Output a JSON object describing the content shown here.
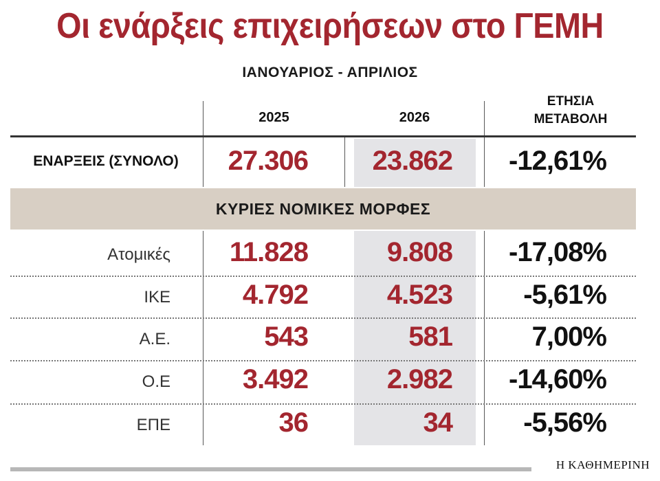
{
  "title": "Οι ενάρξεις επιχειρήσεων στο ΓΕΜΗ",
  "subtitle": "ΙΑΝΟΥΑΡΙΟΣ - ΑΠΡΙΛΙΟΣ",
  "columns": {
    "year1": "2025",
    "year2": "2026",
    "change_line1": "ΕΤΗΣΙΑ",
    "change_line2": "ΜΕΤΑΒΟΛΗ"
  },
  "total": {
    "label": "ΕΝΑΡΞΕΙΣ (ΣΥΝΟΛΟ)",
    "v2025": "27.306",
    "v2026": "23.862",
    "change": "-12,61%"
  },
  "section_header": "ΚΥΡΙΕΣ ΝΟΜΙΚΕΣ ΜΟΡΦΕΣ",
  "rows": [
    {
      "label": "Ατομικές",
      "v2025": "11.828",
      "v2026": "9.808",
      "change": "-17,08%"
    },
    {
      "label": "ΙΚΕ",
      "v2025": "4.792",
      "v2026": "4.523",
      "change": "-5,61%"
    },
    {
      "label": "Α.Ε.",
      "v2025": "543",
      "v2026": "581",
      "change": "7,00%"
    },
    {
      "label": "Ο.Ε",
      "v2025": "3.492",
      "v2026": "2.982",
      "change": "-14,60%"
    },
    {
      "label": "ΕΠΕ",
      "v2025": "36",
      "v2026": "34",
      "change": "-5,56%"
    }
  ],
  "source": "Η ΚΑΘΗΜΕΡΙΝΗ",
  "colors": {
    "accent": "#a3262f",
    "band": "#d8cfc4",
    "highlight_column": "#e4e4e7"
  },
  "chart_data": {
    "type": "table",
    "title": "Οι ενάρξεις επιχειρήσεων στο ΓΕΜΗ",
    "subtitle": "ΙΑΝΟΥΑΡΙΟΣ - ΑΠΡΙΛΙΟΣ",
    "columns": [
      "",
      "2025",
      "2026",
      "ΕΤΗΣΙΑ ΜΕΤΑΒΟΛΗ"
    ],
    "rows": [
      [
        "ΕΝΑΡΞΕΙΣ (ΣΥΝΟΛΟ)",
        27306,
        23862,
        -12.61
      ],
      [
        "Ατομικές",
        11828,
        9808,
        -17.08
      ],
      [
        "ΙΚΕ",
        4792,
        4523,
        -5.61
      ],
      [
        "Α.Ε.",
        543,
        581,
        7.0
      ],
      [
        "Ο.Ε",
        3492,
        2982,
        -14.6
      ],
      [
        "ΕΠΕ",
        36,
        34,
        -5.56
      ]
    ],
    "section_header": "ΚΥΡΙΕΣ ΝΟΜΙΚΕΣ ΜΟΡΦΕΣ"
  }
}
